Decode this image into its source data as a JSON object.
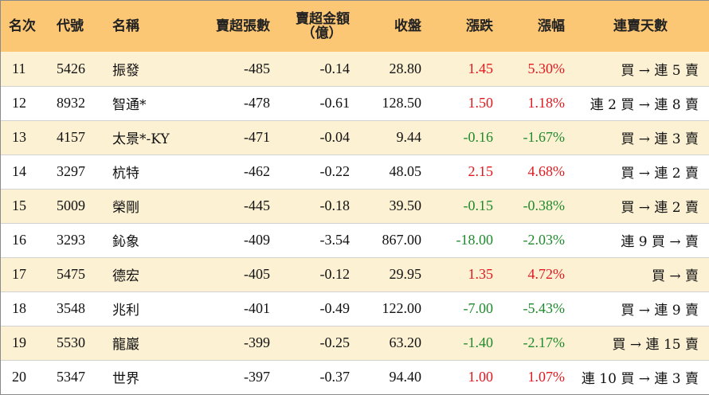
{
  "headers": {
    "rank": "名次",
    "code": "代號",
    "name": "名稱",
    "sell_lots": "賣超張數",
    "sell_amount_line1": "賣超金額",
    "sell_amount_line2": "（億）",
    "close": "收盤",
    "change": "漲跌",
    "change_pct": "漲幅",
    "streak": "連賣天數"
  },
  "colors": {
    "header_bg": "#fbc775",
    "stripe_bg": "#fdf1d4",
    "up": "#e0191f",
    "down": "#1f8a2c"
  },
  "rows": [
    {
      "rank": "11",
      "code": "5426",
      "name": "振發",
      "sell_lots": "-485",
      "sell_amount": "-0.14",
      "close": "28.80",
      "change": "1.45",
      "change_pct": "5.30%",
      "dir": "up",
      "streak": "買 → 連 5 賣"
    },
    {
      "rank": "12",
      "code": "8932",
      "name": "智通*",
      "sell_lots": "-478",
      "sell_amount": "-0.61",
      "close": "128.50",
      "change": "1.50",
      "change_pct": "1.18%",
      "dir": "up",
      "streak": "連 2 買 → 連 8 賣"
    },
    {
      "rank": "13",
      "code": "4157",
      "name": "太景*-KY",
      "sell_lots": "-471",
      "sell_amount": "-0.04",
      "close": "9.44",
      "change": "-0.16",
      "change_pct": "-1.67%",
      "dir": "down",
      "streak": "買 → 連 3 賣"
    },
    {
      "rank": "14",
      "code": "3297",
      "name": "杭特",
      "sell_lots": "-462",
      "sell_amount": "-0.22",
      "close": "48.05",
      "change": "2.15",
      "change_pct": "4.68%",
      "dir": "up",
      "streak": "買 → 連 2 賣"
    },
    {
      "rank": "15",
      "code": "5009",
      "name": "榮剛",
      "sell_lots": "-445",
      "sell_amount": "-0.18",
      "close": "39.50",
      "change": "-0.15",
      "change_pct": "-0.38%",
      "dir": "down",
      "streak": "買 → 連 2 賣"
    },
    {
      "rank": "16",
      "code": "3293",
      "name": "鈊象",
      "sell_lots": "-409",
      "sell_amount": "-3.54",
      "close": "867.00",
      "change": "-18.00",
      "change_pct": "-2.03%",
      "dir": "down",
      "streak": "連 9 買 → 賣"
    },
    {
      "rank": "17",
      "code": "5475",
      "name": "德宏",
      "sell_lots": "-405",
      "sell_amount": "-0.12",
      "close": "29.95",
      "change": "1.35",
      "change_pct": "4.72%",
      "dir": "up",
      "streak": "買 → 賣"
    },
    {
      "rank": "18",
      "code": "3548",
      "name": "兆利",
      "sell_lots": "-401",
      "sell_amount": "-0.49",
      "close": "122.00",
      "change": "-7.00",
      "change_pct": "-5.43%",
      "dir": "down",
      "streak": "買 → 連 9 賣"
    },
    {
      "rank": "19",
      "code": "5530",
      "name": "龍巖",
      "sell_lots": "-399",
      "sell_amount": "-0.25",
      "close": "63.20",
      "change": "-1.40",
      "change_pct": "-2.17%",
      "dir": "down",
      "streak": "買 → 連 15 賣"
    },
    {
      "rank": "20",
      "code": "5347",
      "name": "世界",
      "sell_lots": "-397",
      "sell_amount": "-0.37",
      "close": "94.40",
      "change": "1.00",
      "change_pct": "1.07%",
      "dir": "up",
      "streak": "連 10 買 → 連 3 賣"
    }
  ]
}
